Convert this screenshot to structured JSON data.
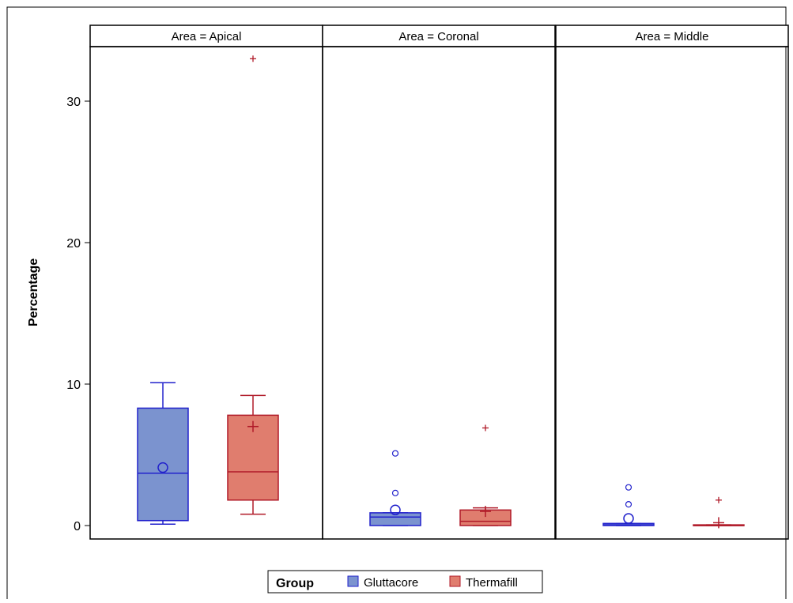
{
  "chart_data": {
    "type": "boxplot",
    "ylabel": "Percentage",
    "yticks": [
      0,
      10,
      20,
      30
    ],
    "ylim": [
      -0.9,
      33.8
    ],
    "legend": {
      "title": "Group",
      "position": "bottom-center",
      "entries": [
        "Gluttacore",
        "Thermafill"
      ]
    },
    "colors": {
      "Gluttacore": {
        "fill": "#7b93cf",
        "stroke": "#2222cc"
      },
      "Thermafill": {
        "fill": "#e07d6e",
        "stroke": "#b01a28"
      }
    },
    "panels": [
      {
        "label": "Area = Apical",
        "boxes": [
          {
            "group": "Gluttacore",
            "min": 0.1,
            "q1": 0.35,
            "median": 3.7,
            "q3": 8.3,
            "max": 10.1,
            "mean": 4.1,
            "outliers": []
          },
          {
            "group": "Thermafill",
            "min": 0.8,
            "q1": 1.8,
            "median": 3.8,
            "q3": 7.8,
            "max": 9.2,
            "mean": 7.0,
            "outliers": [
              33.0
            ]
          }
        ]
      },
      {
        "label": "Area = Coronal",
        "boxes": [
          {
            "group": "Gluttacore",
            "min": 0.0,
            "q1": 0.0,
            "median": 0.6,
            "q3": 0.9,
            "max": 0.9,
            "mean": 1.1,
            "outliers": [
              2.3,
              5.1
            ]
          },
          {
            "group": "Thermafill",
            "min": 0.0,
            "q1": 0.0,
            "median": 0.3,
            "q3": 1.1,
            "max": 1.25,
            "mean": 1.0,
            "outliers": [
              6.9
            ]
          }
        ]
      },
      {
        "label": "Area = Middle",
        "boxes": [
          {
            "group": "Gluttacore",
            "min": 0.0,
            "q1": 0.0,
            "median": 0.05,
            "q3": 0.15,
            "max": 0.15,
            "mean": 0.5,
            "outliers": [
              1.5,
              2.7
            ]
          },
          {
            "group": "Thermafill",
            "min": 0.0,
            "q1": 0.0,
            "median": 0.0,
            "q3": 0.05,
            "max": 0.05,
            "mean": 0.2,
            "outliers": [
              1.8
            ]
          }
        ]
      }
    ]
  }
}
